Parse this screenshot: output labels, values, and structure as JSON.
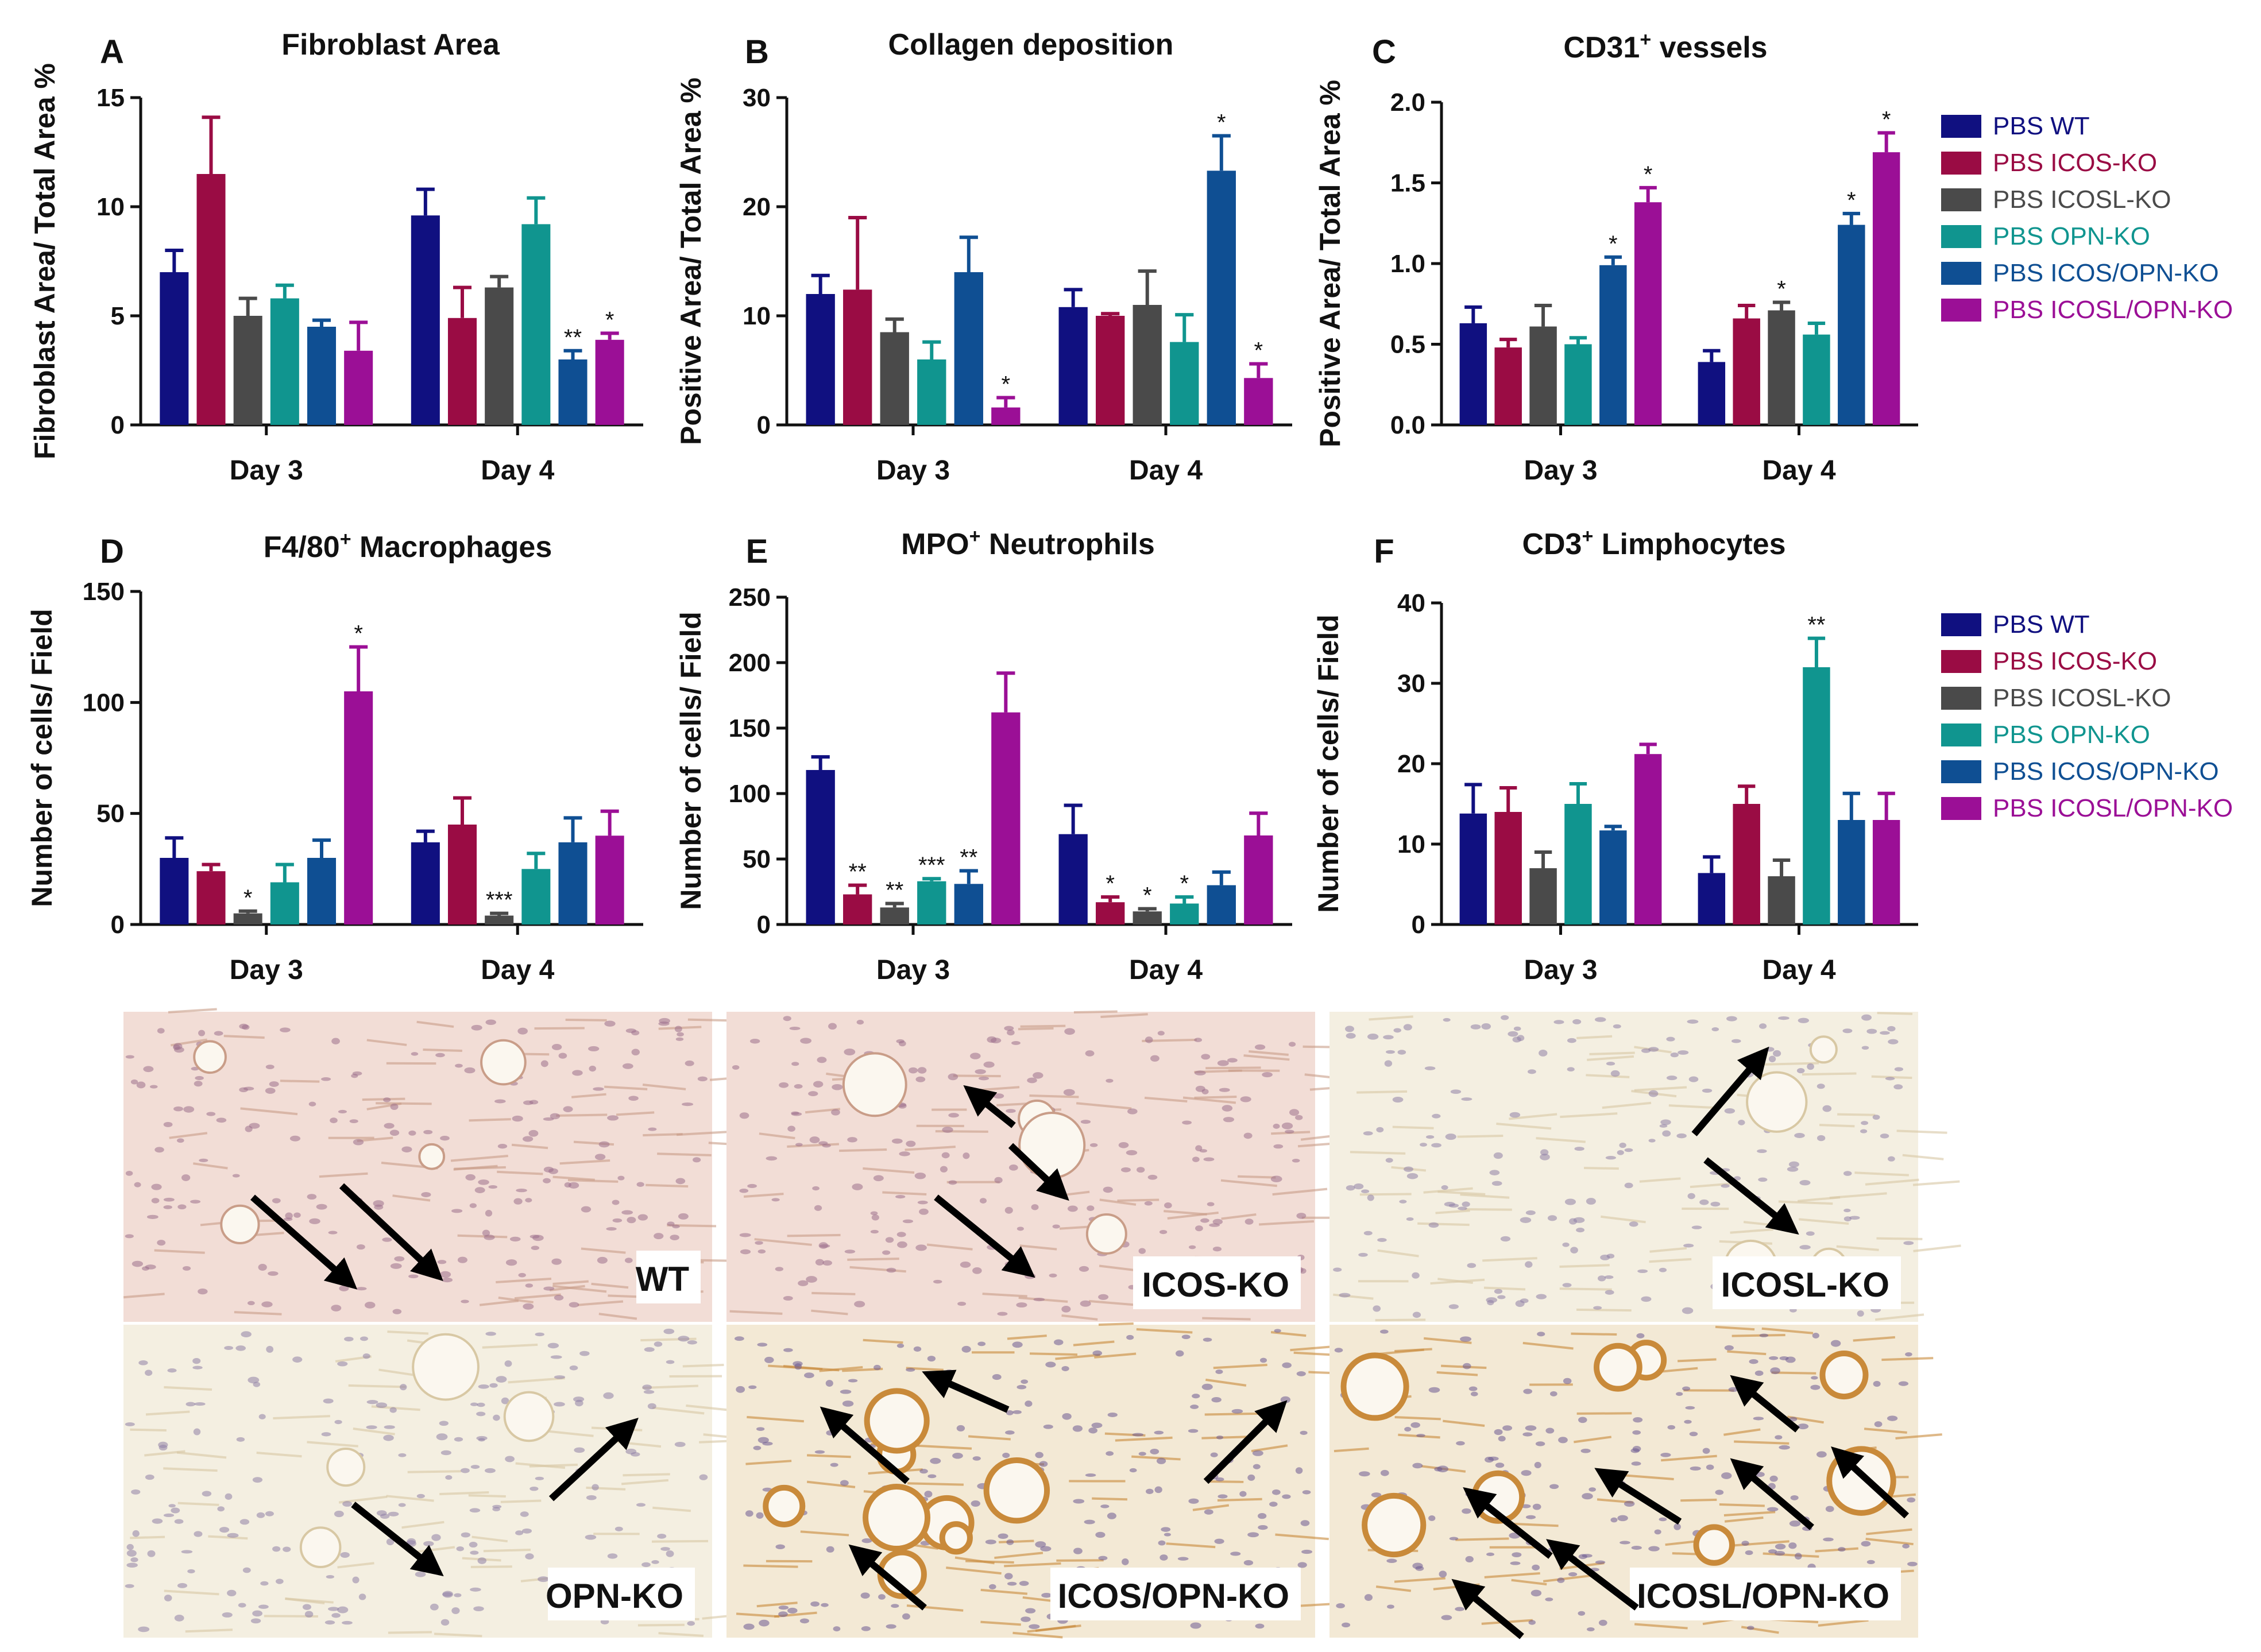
{
  "colors": {
    "PBS WT": "#101080",
    "PBS ICOS-KO": "#9a0c44",
    "PBS ICOSL-KO": "#4a4a4a",
    "PBS OPN-KO": "#10958f",
    "PBS ICOS/OPN-KO": "#0f4f93",
    "PBS ICOSL/OPN-KO": "#9b0f96"
  },
  "legends": [
    {
      "entries": [
        "PBS WT",
        "PBS ICOS-KO",
        "PBS ICOSL-KO",
        "PBS OPN-KO",
        "PBS ICOS/OPN-KO",
        "PBS ICOSL/OPN-KO"
      ]
    },
    {
      "entries": [
        "PBS WT",
        "PBS ICOS-KO",
        "PBS ICOSL-KO",
        "PBS OPN-KO",
        "PBS ICOS/OPN-KO",
        "PBS ICOSL/OPN-KO"
      ]
    }
  ],
  "chart_data": [
    {
      "type": "bar",
      "letter": "A",
      "title": "Fibroblast Area",
      "sup": "",
      "title_rest": "",
      "ylabel": "Fibroblast Area/ Total Area %",
      "ylim": [
        0,
        15
      ],
      "yticks": [
        "0",
        "5",
        "10",
        "15"
      ],
      "categories": [
        "Day 3",
        "Day 4"
      ],
      "series": [
        {
          "name": "PBS WT",
          "values": [
            7.0,
            9.6
          ],
          "errors": [
            1.0,
            1.2
          ],
          "sig": [
            "",
            ""
          ]
        },
        {
          "name": "PBS ICOS-KO",
          "values": [
            11.5,
            4.9
          ],
          "errors": [
            2.6,
            1.4
          ],
          "sig": [
            "",
            ""
          ]
        },
        {
          "name": "PBS ICOSL-KO",
          "values": [
            5.0,
            6.3
          ],
          "errors": [
            0.8,
            0.5
          ],
          "sig": [
            "",
            ""
          ]
        },
        {
          "name": "PBS OPN-KO",
          "values": [
            5.8,
            9.2
          ],
          "errors": [
            0.6,
            1.2
          ],
          "sig": [
            "",
            ""
          ]
        },
        {
          "name": "PBS ICOS/OPN-KO",
          "values": [
            4.5,
            3.0
          ],
          "errors": [
            0.3,
            0.4
          ],
          "sig": [
            "",
            "**"
          ]
        },
        {
          "name": "PBS ICOSL/OPN-KO",
          "values": [
            3.4,
            3.9
          ],
          "errors": [
            1.3,
            0.3
          ],
          "sig": [
            "",
            "*"
          ]
        }
      ]
    },
    {
      "type": "bar",
      "letter": "B",
      "title": "Collagen deposition",
      "sup": "",
      "title_rest": "",
      "ylabel": "Positive Area/ Total Area %",
      "ylim": [
        0,
        30
      ],
      "yticks": [
        "0",
        "10",
        "20",
        "30"
      ],
      "categories": [
        "Day 3",
        "Day 4"
      ],
      "series": [
        {
          "name": "PBS WT",
          "values": [
            12.0,
            10.8
          ],
          "errors": [
            1.7,
            1.6
          ],
          "sig": [
            "",
            ""
          ]
        },
        {
          "name": "PBS ICOS-KO",
          "values": [
            12.4,
            10.0
          ],
          "errors": [
            6.6,
            0.2
          ],
          "sig": [
            "",
            ""
          ]
        },
        {
          "name": "PBS ICOSL-KO",
          "values": [
            8.5,
            11.0
          ],
          "errors": [
            1.2,
            3.1
          ],
          "sig": [
            "",
            ""
          ]
        },
        {
          "name": "PBS OPN-KO",
          "values": [
            6.0,
            7.6
          ],
          "errors": [
            1.6,
            2.5
          ],
          "sig": [
            "",
            ""
          ]
        },
        {
          "name": "PBS ICOS/OPN-KO",
          "values": [
            14.0,
            23.3
          ],
          "errors": [
            3.2,
            3.2
          ],
          "sig": [
            "",
            "*"
          ]
        },
        {
          "name": "PBS ICOSL/OPN-KO",
          "values": [
            1.6,
            4.3
          ],
          "errors": [
            0.9,
            1.3
          ],
          "sig": [
            "*",
            "*"
          ]
        }
      ]
    },
    {
      "type": "bar",
      "letter": "C",
      "title": "CD31",
      "sup": "+",
      "title_rest": " vessels",
      "ylabel": "Positive Area/ Total Area %",
      "ylim": [
        0,
        2.0
      ],
      "yticks": [
        "0.0",
        "0.5",
        "1.0",
        "1.5",
        "2.0"
      ],
      "categories": [
        "Day 3",
        "Day 4"
      ],
      "series": [
        {
          "name": "PBS WT",
          "values": [
            0.63,
            0.39
          ],
          "errors": [
            0.1,
            0.07
          ],
          "sig": [
            "",
            ""
          ]
        },
        {
          "name": "PBS ICOS-KO",
          "values": [
            0.48,
            0.66
          ],
          "errors": [
            0.05,
            0.08
          ],
          "sig": [
            "",
            ""
          ]
        },
        {
          "name": "PBS ICOSL-KO",
          "values": [
            0.61,
            0.71
          ],
          "errors": [
            0.13,
            0.05
          ],
          "sig": [
            "",
            "*"
          ]
        },
        {
          "name": "PBS OPN-KO",
          "values": [
            0.5,
            0.56
          ],
          "errors": [
            0.04,
            0.07
          ],
          "sig": [
            "",
            ""
          ]
        },
        {
          "name": "PBS ICOS/OPN-KO",
          "values": [
            0.99,
            1.24
          ],
          "errors": [
            0.05,
            0.07
          ],
          "sig": [
            "*",
            "*"
          ]
        },
        {
          "name": "PBS ICOSL/OPN-KO",
          "values": [
            1.38,
            1.69
          ],
          "errors": [
            0.09,
            0.12
          ],
          "sig": [
            "*",
            "*"
          ]
        }
      ]
    },
    {
      "type": "bar",
      "letter": "D",
      "title": "F4/80",
      "sup": "+",
      "title_rest": " Macrophages",
      "ylabel": "Number of cells/ Field",
      "ylim": [
        0,
        150
      ],
      "yticks": [
        "0",
        "50",
        "100",
        "150"
      ],
      "categories": [
        "Day 3",
        "Day 4"
      ],
      "series": [
        {
          "name": "PBS WT",
          "values": [
            30,
            37
          ],
          "errors": [
            9,
            5
          ],
          "sig": [
            "",
            ""
          ]
        },
        {
          "name": "PBS ICOS-KO",
          "values": [
            24,
            45
          ],
          "errors": [
            3,
            12
          ],
          "sig": [
            "",
            ""
          ]
        },
        {
          "name": "PBS ICOSL-KO",
          "values": [
            5,
            4
          ],
          "errors": [
            1,
            1
          ],
          "sig": [
            "*",
            "***"
          ]
        },
        {
          "name": "PBS OPN-KO",
          "values": [
            19,
            25
          ],
          "errors": [
            8,
            7
          ],
          "sig": [
            "",
            ""
          ]
        },
        {
          "name": "PBS ICOS/OPN-KO",
          "values": [
            30,
            37
          ],
          "errors": [
            8,
            11
          ],
          "sig": [
            "",
            ""
          ]
        },
        {
          "name": "PBS ICOSL/OPN-KO",
          "values": [
            105,
            40
          ],
          "errors": [
            20,
            11
          ],
          "sig": [
            "*",
            ""
          ]
        }
      ]
    },
    {
      "type": "bar",
      "letter": "E",
      "title": "MPO",
      "sup": "+",
      "title_rest": " Neutrophils",
      "ylabel": "Number of cells/ Field",
      "ylim": [
        0,
        250
      ],
      "yticks": [
        "0",
        "50",
        "100",
        "150",
        "200",
        "250"
      ],
      "categories": [
        "Day 3",
        "Day 4"
      ],
      "series": [
        {
          "name": "PBS WT",
          "values": [
            118,
            69
          ],
          "errors": [
            10,
            22
          ],
          "sig": [
            "",
            ""
          ]
        },
        {
          "name": "PBS ICOS-KO",
          "values": [
            23,
            17
          ],
          "errors": [
            7,
            4
          ],
          "sig": [
            "**",
            "*"
          ]
        },
        {
          "name": "PBS ICOSL-KO",
          "values": [
            13,
            10
          ],
          "errors": [
            3,
            2
          ],
          "sig": [
            "**",
            "*"
          ]
        },
        {
          "name": "PBS OPN-KO",
          "values": [
            33,
            16
          ],
          "errors": [
            2,
            5
          ],
          "sig": [
            "***",
            "*"
          ]
        },
        {
          "name": "PBS ICOS/OPN-KO",
          "values": [
            31,
            30
          ],
          "errors": [
            10,
            10
          ],
          "sig": [
            "**",
            ""
          ]
        },
        {
          "name": "PBS ICOSL/OPN-KO",
          "values": [
            162,
            68
          ],
          "errors": [
            30,
            17
          ],
          "sig": [
            "",
            ""
          ]
        }
      ]
    },
    {
      "type": "bar",
      "letter": "F",
      "title": "CD3",
      "sup": "+",
      "title_rest": " Limphocytes",
      "ylabel": "Number of cells/ Field",
      "ylim": [
        0,
        40
      ],
      "yticks": [
        "0",
        "10",
        "20",
        "30",
        "40"
      ],
      "categories": [
        "Day 3",
        "Day 4"
      ],
      "series": [
        {
          "name": "PBS WT",
          "values": [
            13.8,
            6.4
          ],
          "errors": [
            3.6,
            2.0
          ],
          "sig": [
            "",
            ""
          ]
        },
        {
          "name": "PBS ICOS-KO",
          "values": [
            14.0,
            15.0
          ],
          "errors": [
            3.0,
            2.2
          ],
          "sig": [
            "",
            ""
          ]
        },
        {
          "name": "PBS ICOSL-KO",
          "values": [
            7.0,
            6.0
          ],
          "errors": [
            2.0,
            2.0
          ],
          "sig": [
            "",
            ""
          ]
        },
        {
          "name": "PBS OPN-KO",
          "values": [
            15.0,
            32.0
          ],
          "errors": [
            2.5,
            3.6
          ],
          "sig": [
            "",
            "**"
          ]
        },
        {
          "name": "PBS ICOS/OPN-KO",
          "values": [
            11.7,
            13.0
          ],
          "errors": [
            0.5,
            3.3
          ],
          "sig": [
            "",
            ""
          ]
        },
        {
          "name": "PBS ICOSL/OPN-KO",
          "values": [
            21.2,
            13.0
          ],
          "errors": [
            1.2,
            3.3
          ],
          "sig": [
            "",
            ""
          ]
        }
      ]
    }
  ],
  "micrographs": [
    {
      "label": "WT",
      "tone": "pink"
    },
    {
      "label": "ICOS-KO",
      "tone": "pink"
    },
    {
      "label": "ICOSL-KO",
      "tone": "pale"
    },
    {
      "label": "OPN-KO",
      "tone": "pale"
    },
    {
      "label": "ICOS/OPN-KO",
      "tone": "brown"
    },
    {
      "label": "ICOSL/OPN-KO",
      "tone": "brown"
    }
  ]
}
